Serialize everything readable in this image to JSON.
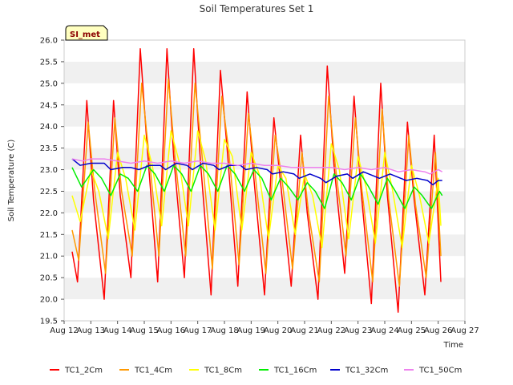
{
  "chart_data": {
    "type": "line",
    "title": "Soil Temperatures Set 1",
    "xlabel": "Time",
    "ylabel": "Soil Temperature (C)",
    "badge": "SI_met",
    "ylim": [
      19.5,
      26.0
    ],
    "yticks": [
      19.5,
      20.0,
      20.5,
      21.0,
      21.5,
      22.0,
      22.5,
      23.0,
      23.5,
      24.0,
      24.5,
      25.0,
      25.5,
      26.0
    ],
    "ytick_labels": [
      "19.5",
      "20.0",
      "20.5",
      "21.0",
      "21.5",
      "22.0",
      "22.5",
      "23.0",
      "23.5",
      "24.0",
      "24.5",
      "25.0",
      "25.5",
      "26.0"
    ],
    "xlim": [
      12,
      27
    ],
    "xticks": [
      12,
      13,
      14,
      15,
      16,
      17,
      18,
      19,
      20,
      21,
      22,
      23,
      24,
      25,
      26,
      27
    ],
    "xtick_labels": [
      "Aug 12",
      "Aug 13",
      "Aug 14",
      "Aug 15",
      "Aug 16",
      "Aug 17",
      "Aug 18",
      "Aug 19",
      "Aug 20",
      "Aug 21",
      "Aug 22",
      "Aug 23",
      "Aug 24",
      "Aug 25",
      "Aug 26",
      "Aug 27"
    ],
    "grid": "horizontal bands",
    "legend_position": "bottom",
    "series": [
      {
        "name": "TC1_2Cm",
        "color": "#ff0000",
        "points": [
          [
            12.3,
            21.1
          ],
          [
            12.5,
            20.4
          ],
          [
            12.85,
            24.6
          ],
          [
            13.1,
            22.3
          ],
          [
            13.5,
            20.0
          ],
          [
            13.85,
            24.6
          ],
          [
            14.1,
            22.4
          ],
          [
            14.5,
            20.5
          ],
          [
            14.85,
            25.8
          ],
          [
            15.1,
            23.6
          ],
          [
            15.5,
            20.4
          ],
          [
            15.85,
            25.8
          ],
          [
            16.1,
            23.3
          ],
          [
            16.5,
            20.5
          ],
          [
            16.85,
            25.8
          ],
          [
            17.1,
            23.2
          ],
          [
            17.5,
            20.1
          ],
          [
            17.85,
            25.3
          ],
          [
            18.1,
            23.5
          ],
          [
            18.5,
            20.3
          ],
          [
            18.85,
            24.8
          ],
          [
            19.1,
            22.8
          ],
          [
            19.5,
            20.1
          ],
          [
            19.85,
            24.2
          ],
          [
            20.1,
            22.7
          ],
          [
            20.5,
            20.3
          ],
          [
            20.85,
            23.8
          ],
          [
            21.1,
            22.0
          ],
          [
            21.5,
            20.0
          ],
          [
            21.85,
            25.4
          ],
          [
            22.1,
            23.1
          ],
          [
            22.5,
            20.6
          ],
          [
            22.85,
            24.7
          ],
          [
            23.1,
            22.6
          ],
          [
            23.5,
            19.9
          ],
          [
            23.85,
            25.0
          ],
          [
            24.1,
            22.4
          ],
          [
            24.5,
            19.7
          ],
          [
            24.85,
            24.1
          ],
          [
            25.1,
            22.3
          ],
          [
            25.5,
            20.1
          ],
          [
            25.85,
            23.8
          ],
          [
            26.1,
            20.4
          ]
        ]
      },
      {
        "name": "TC1_4Cm",
        "color": "#ff9900",
        "points": [
          [
            12.3,
            21.6
          ],
          [
            12.55,
            20.9
          ],
          [
            12.9,
            24.1
          ],
          [
            13.15,
            22.5
          ],
          [
            13.55,
            20.6
          ],
          [
            13.9,
            24.2
          ],
          [
            14.15,
            22.5
          ],
          [
            14.55,
            21.0
          ],
          [
            14.9,
            25.0
          ],
          [
            15.15,
            23.5
          ],
          [
            15.55,
            21.0
          ],
          [
            15.9,
            25.1
          ],
          [
            16.15,
            23.3
          ],
          [
            16.55,
            21.0
          ],
          [
            16.9,
            25.0
          ],
          [
            17.15,
            23.4
          ],
          [
            17.55,
            20.7
          ],
          [
            17.9,
            24.7
          ],
          [
            18.15,
            23.5
          ],
          [
            18.55,
            20.8
          ],
          [
            18.9,
            24.3
          ],
          [
            19.15,
            22.9
          ],
          [
            19.55,
            20.6
          ],
          [
            19.9,
            23.8
          ],
          [
            20.15,
            22.8
          ],
          [
            20.55,
            20.7
          ],
          [
            20.9,
            23.4
          ],
          [
            21.15,
            22.0
          ],
          [
            21.55,
            20.4
          ],
          [
            21.9,
            24.7
          ],
          [
            22.15,
            23.1
          ],
          [
            22.55,
            21.0
          ],
          [
            22.9,
            24.2
          ],
          [
            23.15,
            22.5
          ],
          [
            23.55,
            20.4
          ],
          [
            23.9,
            24.4
          ],
          [
            24.15,
            22.3
          ],
          [
            24.55,
            20.3
          ],
          [
            24.9,
            23.8
          ],
          [
            25.15,
            22.2
          ],
          [
            25.55,
            20.5
          ],
          [
            25.9,
            23.4
          ],
          [
            26.1,
            21.0
          ]
        ]
      },
      {
        "name": "TC1_8Cm",
        "color": "#ffff00",
        "points": [
          [
            12.3,
            22.4
          ],
          [
            12.6,
            21.8
          ],
          [
            13.0,
            23.0
          ],
          [
            13.3,
            22.5
          ],
          [
            13.65,
            21.4
          ],
          [
            14.0,
            23.4
          ],
          [
            14.3,
            22.8
          ],
          [
            14.65,
            21.6
          ],
          [
            15.0,
            23.8
          ],
          [
            15.3,
            23.1
          ],
          [
            15.65,
            21.7
          ],
          [
            16.0,
            23.9
          ],
          [
            16.3,
            23.2
          ],
          [
            16.65,
            21.7
          ],
          [
            17.0,
            23.9
          ],
          [
            17.3,
            23.2
          ],
          [
            17.65,
            21.6
          ],
          [
            18.0,
            23.7
          ],
          [
            18.3,
            23.3
          ],
          [
            18.65,
            21.6
          ],
          [
            19.0,
            23.4
          ],
          [
            19.3,
            22.9
          ],
          [
            19.65,
            21.4
          ],
          [
            20.0,
            23.1
          ],
          [
            20.3,
            22.8
          ],
          [
            20.65,
            21.5
          ],
          [
            21.0,
            22.9
          ],
          [
            21.3,
            22.4
          ],
          [
            21.65,
            21.2
          ],
          [
            22.0,
            23.6
          ],
          [
            22.3,
            23.0
          ],
          [
            22.65,
            21.4
          ],
          [
            23.0,
            23.3
          ],
          [
            23.3,
            22.6
          ],
          [
            23.65,
            21.3
          ],
          [
            24.0,
            23.4
          ],
          [
            24.3,
            22.5
          ],
          [
            24.65,
            21.2
          ],
          [
            25.0,
            23.1
          ],
          [
            25.3,
            22.4
          ],
          [
            25.65,
            21.3
          ],
          [
            26.0,
            22.8
          ],
          [
            26.1,
            21.7
          ]
        ]
      },
      {
        "name": "TC1_16Cm",
        "color": "#00ee00",
        "points": [
          [
            12.3,
            23.05
          ],
          [
            12.65,
            22.6
          ],
          [
            13.1,
            23.0
          ],
          [
            13.4,
            22.8
          ],
          [
            13.75,
            22.4
          ],
          [
            14.1,
            22.9
          ],
          [
            14.4,
            22.8
          ],
          [
            14.75,
            22.5
          ],
          [
            15.1,
            23.1
          ],
          [
            15.4,
            22.9
          ],
          [
            15.75,
            22.5
          ],
          [
            16.1,
            23.1
          ],
          [
            16.4,
            22.9
          ],
          [
            16.75,
            22.5
          ],
          [
            17.1,
            23.1
          ],
          [
            17.4,
            22.9
          ],
          [
            17.75,
            22.5
          ],
          [
            18.1,
            23.1
          ],
          [
            18.4,
            22.9
          ],
          [
            18.75,
            22.5
          ],
          [
            19.1,
            23.0
          ],
          [
            19.4,
            22.8
          ],
          [
            19.75,
            22.3
          ],
          [
            20.1,
            22.8
          ],
          [
            20.4,
            22.6
          ],
          [
            20.75,
            22.3
          ],
          [
            21.1,
            22.7
          ],
          [
            21.4,
            22.5
          ],
          [
            21.75,
            22.1
          ],
          [
            22.1,
            22.9
          ],
          [
            22.4,
            22.7
          ],
          [
            22.75,
            22.3
          ],
          [
            23.1,
            22.9
          ],
          [
            23.4,
            22.6
          ],
          [
            23.75,
            22.2
          ],
          [
            24.1,
            22.8
          ],
          [
            24.4,
            22.5
          ],
          [
            24.75,
            22.1
          ],
          [
            25.1,
            22.6
          ],
          [
            25.4,
            22.4
          ],
          [
            25.75,
            22.1
          ],
          [
            26.05,
            22.5
          ],
          [
            26.15,
            22.4
          ]
        ]
      },
      {
        "name": "TC1_32Cm",
        "color": "#0000cc",
        "points": [
          [
            12.3,
            23.25
          ],
          [
            12.6,
            23.1
          ],
          [
            13.0,
            23.15
          ],
          [
            13.5,
            23.15
          ],
          [
            13.75,
            23.0
          ],
          [
            14.2,
            23.05
          ],
          [
            14.5,
            23.05
          ],
          [
            14.8,
            23.0
          ],
          [
            15.2,
            23.1
          ],
          [
            15.6,
            23.1
          ],
          [
            15.8,
            23.0
          ],
          [
            16.2,
            23.15
          ],
          [
            16.6,
            23.1
          ],
          [
            16.8,
            23.0
          ],
          [
            17.2,
            23.15
          ],
          [
            17.6,
            23.1
          ],
          [
            17.8,
            23.0
          ],
          [
            18.2,
            23.1
          ],
          [
            18.6,
            23.1
          ],
          [
            18.8,
            23.0
          ],
          [
            19.2,
            23.05
          ],
          [
            19.6,
            23.0
          ],
          [
            19.8,
            22.9
          ],
          [
            20.2,
            22.95
          ],
          [
            20.6,
            22.9
          ],
          [
            20.8,
            22.8
          ],
          [
            21.2,
            22.9
          ],
          [
            21.6,
            22.8
          ],
          [
            21.8,
            22.7
          ],
          [
            22.2,
            22.85
          ],
          [
            22.6,
            22.9
          ],
          [
            22.8,
            22.8
          ],
          [
            23.2,
            22.95
          ],
          [
            23.6,
            22.85
          ],
          [
            23.8,
            22.8
          ],
          [
            24.2,
            22.9
          ],
          [
            24.6,
            22.8
          ],
          [
            24.8,
            22.75
          ],
          [
            25.2,
            22.8
          ],
          [
            25.6,
            22.75
          ],
          [
            25.8,
            22.65
          ],
          [
            26.0,
            22.75
          ],
          [
            26.15,
            22.75
          ]
        ]
      },
      {
        "name": "TC1_50Cm",
        "color": "#ee82ee",
        "points": [
          [
            12.3,
            23.25
          ],
          [
            12.7,
            23.2
          ],
          [
            13.0,
            23.25
          ],
          [
            13.5,
            23.25
          ],
          [
            14.0,
            23.2
          ],
          [
            14.5,
            23.15
          ],
          [
            15.0,
            23.2
          ],
          [
            15.5,
            23.15
          ],
          [
            16.0,
            23.2
          ],
          [
            16.5,
            23.15
          ],
          [
            17.0,
            23.2
          ],
          [
            17.5,
            23.15
          ],
          [
            18.0,
            23.15
          ],
          [
            18.5,
            23.1
          ],
          [
            19.0,
            23.15
          ],
          [
            19.5,
            23.1
          ],
          [
            20.0,
            23.1
          ],
          [
            20.5,
            23.05
          ],
          [
            21.0,
            23.05
          ],
          [
            21.5,
            23.05
          ],
          [
            22.0,
            23.05
          ],
          [
            22.5,
            23.0
          ],
          [
            23.0,
            23.05
          ],
          [
            23.5,
            23.0
          ],
          [
            24.0,
            23.05
          ],
          [
            24.5,
            22.95
          ],
          [
            25.0,
            23.0
          ],
          [
            25.5,
            22.95
          ],
          [
            25.7,
            22.9
          ],
          [
            26.0,
            23.0
          ],
          [
            26.15,
            22.95
          ]
        ]
      }
    ]
  }
}
